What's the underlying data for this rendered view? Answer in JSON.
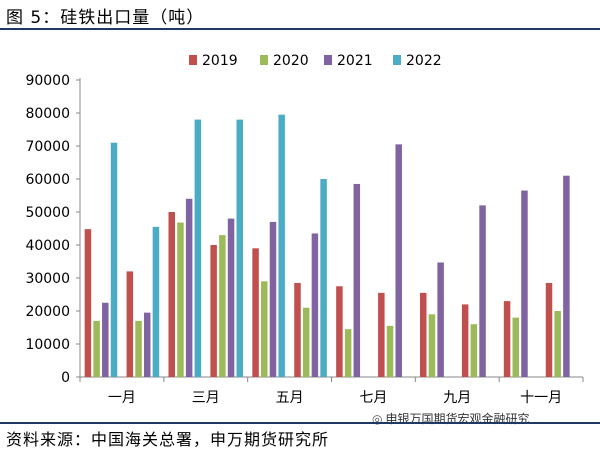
{
  "title": "图 5：硅铁出口量（吨）",
  "source": "资料来源：中国海关总署，申万期货研究所",
  "watermark": {
    "icon": "wechat-icon",
    "text": "申银万国期货宏观金融研究"
  },
  "chart_data": {
    "type": "bar",
    "title": "硅铁出口量（吨）",
    "xlabel": "",
    "ylabel": "",
    "ylim": [
      0,
      90000
    ],
    "yticks": [
      0,
      10000,
      20000,
      30000,
      40000,
      50000,
      60000,
      70000,
      80000,
      90000
    ],
    "categories": [
      "一月",
      "二月",
      "三月",
      "四月",
      "五月",
      "六月",
      "七月",
      "八月",
      "九月",
      "十月",
      "十一月",
      "十二月"
    ],
    "shown_category_labels": [
      "一月",
      "三月",
      "五月",
      "七月",
      "九月",
      "十一月"
    ],
    "legend_position": "top",
    "series": [
      {
        "name": "2019",
        "color": "#c0504d",
        "values": [
          44800,
          32000,
          50000,
          40000,
          39000,
          28500,
          27500,
          25500,
          25500,
          22000,
          23000,
          28500
        ]
      },
      {
        "name": "2020",
        "color": "#9bbb59",
        "values": [
          17000,
          17000,
          46800,
          43000,
          29000,
          21000,
          14500,
          15500,
          19000,
          16000,
          18000,
          20000
        ]
      },
      {
        "name": "2021",
        "color": "#8064a2",
        "values": [
          22500,
          19500,
          54000,
          48000,
          47000,
          43500,
          58500,
          70500,
          34700,
          52000,
          56500,
          61000
        ]
      },
      {
        "name": "2022",
        "color": "#4bacc6",
        "values": [
          71000,
          45500,
          78000,
          78000,
          79500,
          60000,
          null,
          null,
          null,
          null,
          null,
          null
        ]
      }
    ]
  }
}
